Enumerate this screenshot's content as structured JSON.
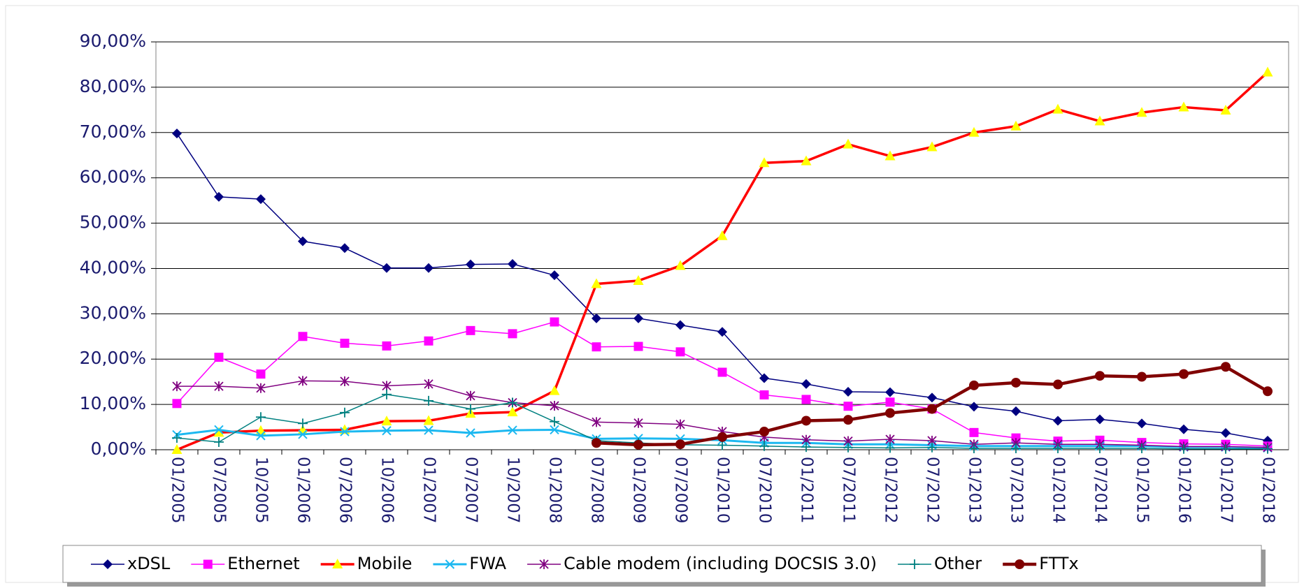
{
  "chart_data": {
    "type": "line",
    "categories": [
      "01/2005",
      "07/2005",
      "10/2005",
      "01/2006",
      "07/2006",
      "10/2006",
      "01/2007",
      "07/2007",
      "10/2007",
      "01/2008",
      "07/2008",
      "01/2009",
      "07/2009",
      "01/2010",
      "07/2010",
      "01/2011",
      "07/2011",
      "01/2012",
      "07/2012",
      "01/2013",
      "07/2013",
      "01/2014",
      "07/2014",
      "01/2015",
      "01/2016",
      "01/2017",
      "01/2018"
    ],
    "ylim": [
      0,
      90
    ],
    "yticks": [
      {
        "value": 0,
        "label": "0,00%"
      },
      {
        "value": 10,
        "label": "10,00%"
      },
      {
        "value": 20,
        "label": "20,00%"
      },
      {
        "value": 30,
        "label": "30,00%"
      },
      {
        "value": 40,
        "label": "40,00%"
      },
      {
        "value": 50,
        "label": "50,00%"
      },
      {
        "value": 60,
        "label": "60,00%"
      },
      {
        "value": 70,
        "label": "70,00%"
      },
      {
        "value": 80,
        "label": "80,00%"
      },
      {
        "value": 90,
        "label": "90,00%"
      }
    ],
    "grid": true,
    "legend": "bottom",
    "series": [
      {
        "name": "xDSL",
        "color": "#000080",
        "marker": "diamond",
        "line_width": 1.5,
        "values": [
          69.8,
          55.8,
          55.3,
          46,
          44.5,
          40.1,
          40.1,
          40.9,
          41,
          38.5,
          29,
          29,
          27.5,
          26,
          15.8,
          14.5,
          12.8,
          12.7,
          11.5,
          9.5,
          8.5,
          6.4,
          6.7,
          5.8,
          4.5,
          3.7,
          2
        ]
      },
      {
        "name": "Ethernet",
        "color": "#ff00ff",
        "marker": "square",
        "line_width": 1.5,
        "values": [
          10.2,
          20.4,
          16.7,
          25,
          23.5,
          22.9,
          24,
          26.3,
          25.6,
          28.2,
          22.7,
          22.8,
          21.6,
          17.1,
          12.1,
          11.1,
          9.6,
          10.5,
          9,
          3.8,
          2.6,
          1.9,
          2.1,
          1.6,
          1.3,
          1.2,
          0.8
        ]
      },
      {
        "name": "Mobile",
        "color": "#ff0000",
        "marker": "triangle",
        "marker_color": "#ffff00",
        "line_width": 3.5,
        "values": [
          0,
          3.8,
          4.2,
          4.3,
          4.4,
          6.3,
          6.4,
          8,
          8.3,
          13,
          36.6,
          37.3,
          40.6,
          47.2,
          63.3,
          63.7,
          67.4,
          64.8,
          66.8,
          70,
          71.4,
          75.1,
          72.5,
          74.4,
          75.6,
          74.9,
          83.3
        ]
      },
      {
        "name": "FWA",
        "color": "#1cb8f0",
        "marker": "x",
        "line_width": 3,
        "values": [
          3.3,
          4.4,
          3.1,
          3.4,
          4,
          4.2,
          4.3,
          3.7,
          4.3,
          4.4,
          2.4,
          2.5,
          2.4,
          2.1,
          1.5,
          1.5,
          1.2,
          1.2,
          1,
          0.8,
          0.8,
          0.8,
          0.8,
          0.8,
          0.6,
          0.6,
          0.4
        ]
      },
      {
        "name": "Cable modem (including DOCSIS 3.0)",
        "color": "#800080",
        "marker": "asterisk",
        "line_width": 1.5,
        "values": [
          14,
          14,
          13.6,
          15.2,
          15.1,
          14.1,
          14.5,
          11.9,
          10.4,
          9.7,
          6.1,
          5.9,
          5.6,
          4,
          2.8,
          2.2,
          1.9,
          2.3,
          2,
          1.2,
          1.5,
          1.2,
          1.2,
          1,
          0.7,
          0.7,
          0.5
        ]
      },
      {
        "name": "Other",
        "color": "#008080",
        "marker": "plus",
        "line_width": 1.5,
        "values": [
          2.6,
          1.7,
          7.2,
          5.8,
          8.2,
          12.2,
          10.8,
          9,
          10.4,
          6.2,
          2,
          1.5,
          1.1,
          1,
          0.8,
          0.6,
          0.5,
          0.4,
          0.5,
          0.3,
          0.3,
          0.3,
          0.3,
          0.3,
          0.2,
          0.2,
          0.2
        ]
      },
      {
        "name": "FTTx",
        "color": "#800000",
        "marker": "circle",
        "line_width": 4.5,
        "values": [
          null,
          null,
          null,
          null,
          null,
          null,
          null,
          null,
          null,
          null,
          1.5,
          1.1,
          1.2,
          2.8,
          4,
          6.4,
          6.6,
          8.1,
          9,
          14.2,
          14.8,
          14.4,
          16.3,
          16.1,
          16.7,
          18.3,
          12.9
        ]
      }
    ]
  }
}
